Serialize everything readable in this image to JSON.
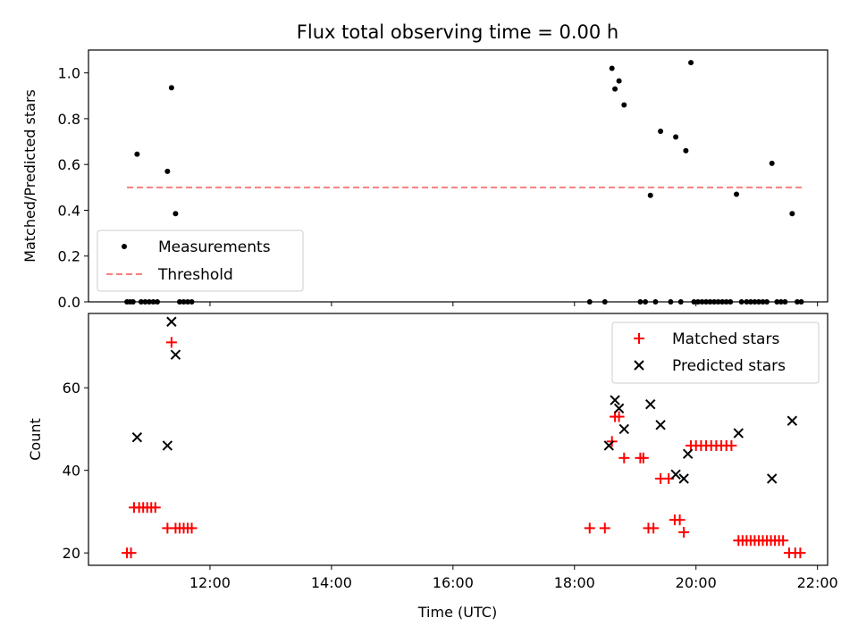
{
  "chart_data": [
    {
      "type": "scatter",
      "title": "Flux total observing time = 0.00 h",
      "ylabel": "Matched/Predicted stars",
      "xlabel": "",
      "xlim": [
        "10:00",
        "22:10"
      ],
      "ylim": [
        0,
        1.1
      ],
      "yticks": [
        "0.0",
        "0.2",
        "0.4",
        "0.6",
        "0.8",
        "1.0"
      ],
      "legend_position": "lower-left",
      "legend": [
        "Measurements",
        "Threshold"
      ],
      "threshold": {
        "value": 0.5,
        "x_start": "10:38",
        "x_end": "21:47",
        "color": "#f77f7f"
      },
      "colors": {
        "measurements": "#000000"
      },
      "series": [
        {
          "name": "Measurements",
          "points": [
            [
              "10:48",
              0.645
            ],
            [
              "11:18",
              0.57
            ],
            [
              "11:22",
              0.935
            ],
            [
              "11:26",
              0.385
            ],
            [
              "18:37",
              1.02
            ],
            [
              "18:40",
              0.93
            ],
            [
              "18:44",
              0.965
            ],
            [
              "18:49",
              0.86
            ],
            [
              "19:15",
              0.465
            ],
            [
              "19:25",
              0.745
            ],
            [
              "19:40",
              0.72
            ],
            [
              "19:50",
              0.66
            ],
            [
              "19:55",
              1.045
            ],
            [
              "20:40",
              0.47
            ],
            [
              "21:15",
              0.605
            ],
            [
              "21:35",
              0.385
            ],
            [
              "10:38",
              0
            ],
            [
              "10:41",
              0
            ],
            [
              "10:44",
              0
            ],
            [
              "10:52",
              0
            ],
            [
              "10:56",
              0
            ],
            [
              "11:00",
              0
            ],
            [
              "11:04",
              0
            ],
            [
              "11:08",
              0
            ],
            [
              "11:30",
              0
            ],
            [
              "11:34",
              0
            ],
            [
              "11:38",
              0
            ],
            [
              "11:42",
              0
            ],
            [
              "18:15",
              0
            ],
            [
              "18:30",
              0
            ],
            [
              "19:05",
              0
            ],
            [
              "19:10",
              0
            ],
            [
              "19:20",
              0
            ],
            [
              "19:35",
              0
            ],
            [
              "19:45",
              0
            ],
            [
              "19:58",
              0
            ],
            [
              "20:02",
              0
            ],
            [
              "20:06",
              0
            ],
            [
              "20:10",
              0
            ],
            [
              "20:14",
              0
            ],
            [
              "20:18",
              0
            ],
            [
              "20:22",
              0
            ],
            [
              "20:26",
              0
            ],
            [
              "20:30",
              0
            ],
            [
              "20:34",
              0
            ],
            [
              "20:45",
              0
            ],
            [
              "20:50",
              0
            ],
            [
              "20:54",
              0
            ],
            [
              "20:58",
              0
            ],
            [
              "21:02",
              0
            ],
            [
              "21:06",
              0
            ],
            [
              "21:10",
              0
            ],
            [
              "21:20",
              0
            ],
            [
              "21:24",
              0
            ],
            [
              "21:28",
              0
            ],
            [
              "21:40",
              0
            ],
            [
              "21:44",
              0
            ]
          ]
        }
      ]
    },
    {
      "type": "scatter",
      "title": "",
      "ylabel": "Count",
      "xlabel": "Time (UTC)",
      "xlim": [
        "10:00",
        "22:10"
      ],
      "ylim": [
        17,
        78
      ],
      "yticks": [
        "20",
        "40",
        "60"
      ],
      "xticks": [
        "12:00",
        "14:00",
        "16:00",
        "18:00",
        "20:00",
        "22:00"
      ],
      "legend_position": "top-right",
      "legend": [
        "Matched stars",
        "Predicted stars"
      ],
      "colors": {
        "matched": "#ff0000",
        "predicted": "#000000"
      },
      "series": [
        {
          "name": "Matched stars",
          "points": [
            [
              "10:38",
              20
            ],
            [
              "10:42",
              20
            ],
            [
              "10:45",
              31
            ],
            [
              "10:50",
              31
            ],
            [
              "10:54",
              31
            ],
            [
              "10:58",
              31
            ],
            [
              "11:02",
              31
            ],
            [
              "11:06",
              31
            ],
            [
              "11:18",
              26
            ],
            [
              "11:22",
              71
            ],
            [
              "11:26",
              26
            ],
            [
              "11:30",
              26
            ],
            [
              "11:34",
              26
            ],
            [
              "11:38",
              26
            ],
            [
              "11:42",
              26
            ],
            [
              "18:15",
              26
            ],
            [
              "18:30",
              26
            ],
            [
              "18:37",
              47
            ],
            [
              "18:40",
              53
            ],
            [
              "18:44",
              53
            ],
            [
              "18:49",
              43
            ],
            [
              "19:05",
              43
            ],
            [
              "19:08",
              43
            ],
            [
              "19:13",
              26
            ],
            [
              "19:18",
              26
            ],
            [
              "19:25",
              38
            ],
            [
              "19:33",
              38
            ],
            [
              "19:39",
              28
            ],
            [
              "19:44",
              28
            ],
            [
              "19:48",
              25
            ],
            [
              "19:55",
              46
            ],
            [
              "20:00",
              46
            ],
            [
              "20:05",
              46
            ],
            [
              "20:10",
              46
            ],
            [
              "20:15",
              46
            ],
            [
              "20:20",
              46
            ],
            [
              "20:25",
              46
            ],
            [
              "20:30",
              46
            ],
            [
              "20:35",
              46
            ],
            [
              "20:42",
              23
            ],
            [
              "20:46",
              23
            ],
            [
              "20:50",
              23
            ],
            [
              "20:54",
              23
            ],
            [
              "20:58",
              23
            ],
            [
              "21:02",
              23
            ],
            [
              "21:06",
              23
            ],
            [
              "21:10",
              23
            ],
            [
              "21:14",
              23
            ],
            [
              "21:18",
              23
            ],
            [
              "21:22",
              23
            ],
            [
              "21:26",
              23
            ],
            [
              "21:32",
              20
            ],
            [
              "21:38",
              20
            ],
            [
              "21:43",
              20
            ]
          ]
        },
        {
          "name": "Predicted stars",
          "points": [
            [
              "10:48",
              48
            ],
            [
              "11:18",
              46
            ],
            [
              "11:22",
              76
            ],
            [
              "11:26",
              68
            ],
            [
              "18:34",
              46
            ],
            [
              "18:40",
              57
            ],
            [
              "18:44",
              55
            ],
            [
              "18:49",
              50
            ],
            [
              "19:15",
              56
            ],
            [
              "19:25",
              51
            ],
            [
              "19:40",
              39
            ],
            [
              "19:48",
              38
            ],
            [
              "19:52",
              44
            ],
            [
              "20:42",
              49
            ],
            [
              "21:15",
              38
            ],
            [
              "21:35",
              52
            ]
          ]
        }
      ]
    }
  ]
}
